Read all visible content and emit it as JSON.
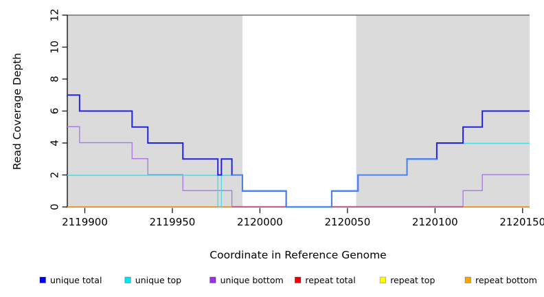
{
  "chart_data": {
    "type": "line",
    "step": true,
    "title": "",
    "xlabel": "Coordinate in Reference Genome",
    "ylabel": "Read Coverage Depth",
    "xlim": [
      2119890,
      2120154
    ],
    "ylim": [
      0,
      12
    ],
    "x_ticks": [
      2119900,
      2119950,
      2120000,
      2120050,
      2120100,
      2120150
    ],
    "y_ticks": [
      0,
      2,
      4,
      6,
      8,
      10,
      12
    ],
    "grid": false,
    "band_color": "#DBDBDB",
    "shaded_regions": [
      [
        2119890,
        2119990
      ],
      [
        2120055,
        2120154
      ]
    ],
    "series": [
      {
        "name": "repeat top",
        "color": "#F2E50A",
        "width": 1.4,
        "runs": [
          [
            [
              2119890,
              0
            ],
            [
              2120154,
              0
            ]
          ]
        ]
      },
      {
        "name": "unique bottom",
        "color": "#AC7CE4",
        "width": 1.4,
        "runs": [
          [
            [
              2119890,
              5
            ],
            [
              2119897,
              4
            ],
            [
              2119927,
              3
            ],
            [
              2119936,
              2
            ],
            [
              2119956,
              1
            ],
            [
              2119984,
              0
            ],
            [
              2120116,
              1
            ],
            [
              2120127,
              2
            ],
            [
              2120154,
              2
            ]
          ]
        ]
      },
      {
        "name": "repeat total",
        "color": "#CC4368",
        "width": 1.4,
        "runs": [
          [
            [
              2119890,
              0
            ],
            [
              2120154,
              0
            ]
          ]
        ]
      },
      {
        "name": "repeat bottom",
        "color": "#F79420",
        "width": 1.6,
        "runs": [
          [
            [
              2119890,
              0
            ],
            [
              2119984,
              0
            ]
          ],
          [
            [
              2120116,
              0
            ],
            [
              2120154,
              0
            ]
          ]
        ]
      },
      {
        "name": "unique top",
        "color": "#4ADCE6",
        "width": 1.4,
        "runs": [
          [
            [
              2119890,
              2
            ],
            [
              2119976,
              0
            ],
            [
              2119978,
              2
            ],
            [
              2119990,
              1
            ],
            [
              2120015,
              0
            ],
            [
              2120041,
              1
            ],
            [
              2120056,
              2
            ],
            [
              2120084,
              3
            ],
            [
              2120101,
              4
            ],
            [
              2120154,
              4
            ]
          ]
        ]
      },
      {
        "name": "unique total",
        "color": "#2222E4",
        "width": 2,
        "runs": [
          [
            [
              2119890,
              7
            ],
            [
              2119897,
              6
            ],
            [
              2119927,
              5
            ],
            [
              2119936,
              4
            ],
            [
              2119956,
              3
            ],
            [
              2119976,
              2
            ],
            [
              2119978,
              3
            ],
            [
              2119984,
              2
            ],
            [
              2119990,
              1
            ],
            [
              2120015,
              0
            ],
            [
              2120041,
              1
            ],
            [
              2120056,
              2
            ],
            [
              2120084,
              3
            ],
            [
              2120101,
              4
            ],
            [
              2120116,
              5
            ],
            [
              2120127,
              6
            ],
            [
              2120154,
              6
            ]
          ]
        ]
      },
      {
        "name": "unique total overlap tint",
        "color": "#4C86F2",
        "width": 2,
        "runs": [
          [
            [
              2119984,
              2
            ],
            [
              2119990,
              1
            ],
            [
              2120015,
              0
            ],
            [
              2120041,
              1
            ],
            [
              2120056,
              2
            ],
            [
              2120084,
              3
            ],
            [
              2120101,
              3
            ]
          ]
        ]
      }
    ],
    "legend": [
      {
        "label": "unique total",
        "color": "#0000F0"
      },
      {
        "label": "unique top",
        "color": "#00E6F0"
      },
      {
        "label": "unique bottom",
        "color": "#9B30E0"
      },
      {
        "label": "repeat total",
        "color": "#F00000"
      },
      {
        "label": "repeat top",
        "color": "#FFFF00"
      },
      {
        "label": "repeat bottom",
        "color": "#FFA500"
      }
    ],
    "legend_position": "bottom"
  }
}
